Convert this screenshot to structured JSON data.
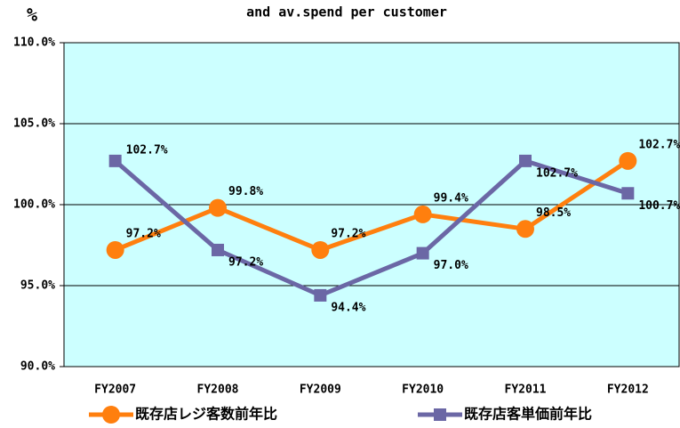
{
  "chart_data": {
    "type": "line",
    "title": "and av.spend per customer",
    "y_label": "%",
    "categories": [
      "FY2007",
      "FY2008",
      "FY2009",
      "FY2010",
      "FY2011",
      "FY2012"
    ],
    "series": [
      {
        "name": "既存店レジ客数前年比",
        "color": "#ff7f0e",
        "marker": "circle",
        "values": [
          97.2,
          99.8,
          97.2,
          99.4,
          98.5,
          102.7
        ],
        "value_labels": [
          "97.2%",
          "99.8%",
          "97.2%",
          "99.4%",
          "98.5%",
          "102.7%"
        ]
      },
      {
        "name": "既存店客単価前年比",
        "color": "#6b67a5",
        "marker": "square",
        "values": [
          102.7,
          97.2,
          94.4,
          97.0,
          102.7,
          100.7
        ],
        "value_labels": [
          "102.7%",
          "97.2%",
          "94.4%",
          "97.0%",
          "102.7%",
          "100.7%"
        ]
      }
    ],
    "ylim": [
      90,
      110
    ],
    "yticks": [
      {
        "value": 90,
        "label": "90.0%"
      },
      {
        "value": 95,
        "label": "95.0%"
      },
      {
        "value": 100,
        "label": "100.0%"
      },
      {
        "value": 105,
        "label": "105.0%"
      },
      {
        "value": 110,
        "label": "110.0%"
      }
    ],
    "grid": true,
    "plot_background": "#ccffff"
  }
}
